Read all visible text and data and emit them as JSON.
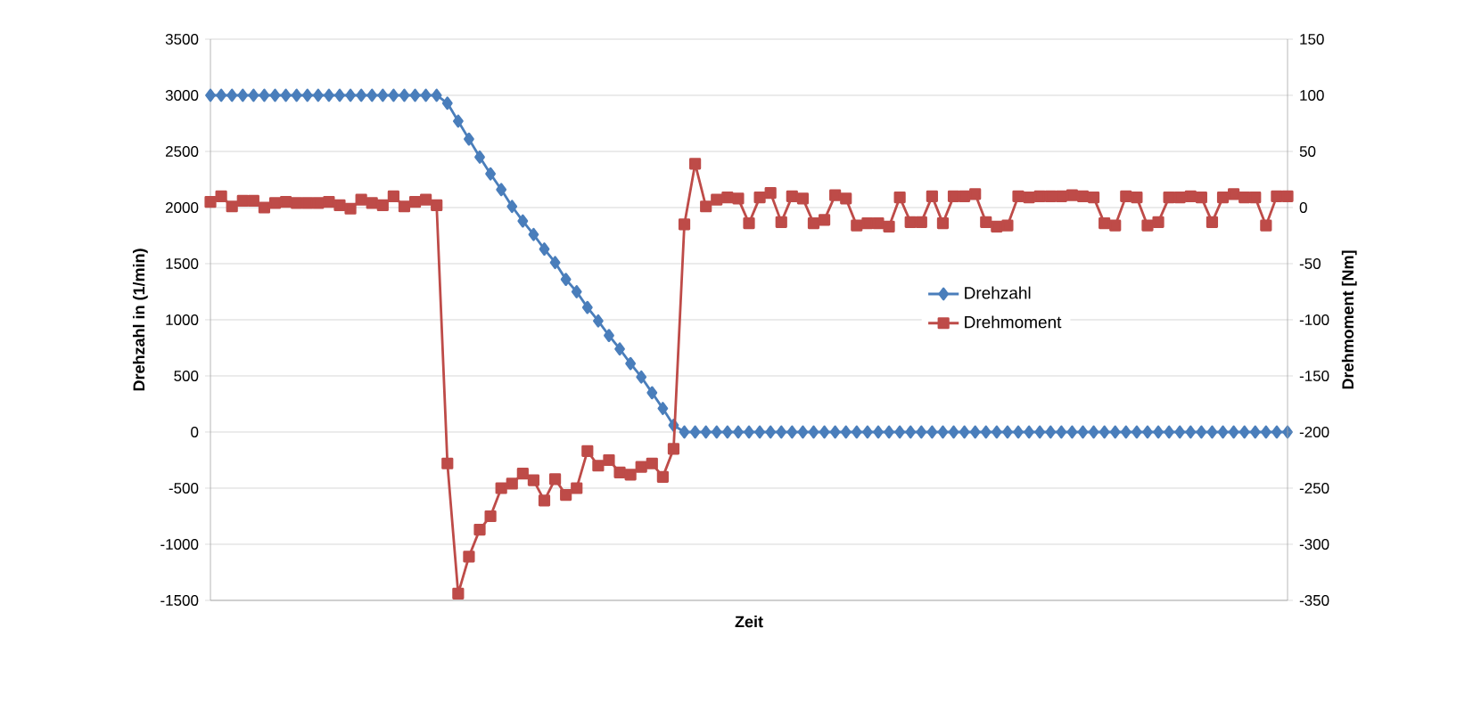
{
  "chart_data": {
    "type": "line",
    "xlabel": "Zeit",
    "ylabel": "Drehzahl in (1/min)",
    "y2label": "Drehmoment [Nm]",
    "categories": [
      null,
      null,
      null,
      null,
      null,
      null,
      null,
      null,
      null,
      null,
      null,
      null,
      null,
      null,
      null,
      null,
      null,
      null,
      null,
      null,
      null,
      null,
      null,
      null,
      null,
      null,
      null,
      null,
      null,
      null,
      null,
      null,
      null,
      null,
      null,
      null,
      null,
      null,
      null,
      null,
      null,
      null,
      null,
      null,
      null,
      null,
      null,
      null,
      null,
      null,
      null,
      null,
      null,
      null,
      null,
      null,
      null,
      null,
      null,
      null,
      null,
      null,
      null,
      null,
      null,
      null,
      null,
      null,
      null,
      null,
      null,
      null,
      null,
      null,
      null,
      null,
      null,
      null,
      null,
      null,
      null,
      null,
      null,
      null,
      null,
      null,
      null,
      null,
      null,
      null,
      null,
      null,
      null,
      null,
      null,
      null,
      null,
      null,
      null,
      null,
      null
    ],
    "series": [
      {
        "name": "Drehzahl",
        "color": "#4a7ebb",
        "marker": "diamond",
        "values": [
          3000,
          3000,
          3000,
          3000,
          3000,
          3000,
          3000,
          3000,
          3000,
          3000,
          3000,
          3000,
          3000,
          3000,
          3000,
          3000,
          3000,
          3000,
          3000,
          3000,
          3000,
          3000,
          2930,
          2770,
          2610,
          2450,
          2300,
          2160,
          2010,
          1880,
          1760,
          1630,
          1510,
          1360,
          1250,
          1110,
          990,
          860,
          740,
          610,
          490,
          350,
          210,
          60,
          0,
          0,
          0,
          0,
          0,
          0,
          0,
          0,
          0,
          0,
          0,
          0,
          0,
          0,
          0,
          0,
          0,
          0,
          0,
          0,
          0,
          0,
          0,
          0,
          0,
          0,
          0,
          0,
          0,
          0,
          0,
          0,
          0,
          0,
          0,
          0,
          0,
          0,
          0,
          0,
          0,
          0,
          0,
          0,
          0,
          0,
          0,
          0,
          0,
          0,
          0,
          0,
          0,
          0,
          0,
          0,
          0
        ]
      },
      {
        "name": "Drehmoment",
        "color": "#be4b48",
        "marker": "square",
        "axis": "y2",
        "values": [
          5,
          10,
          1,
          6,
          6,
          0,
          4,
          5,
          4,
          4,
          4,
          5,
          2,
          -1,
          7,
          4,
          2,
          10,
          1,
          5,
          7,
          2,
          -228,
          -344,
          -311,
          -287,
          -275,
          -250,
          -246,
          -237,
          -243,
          -261,
          -242,
          -256,
          -250,
          -217,
          -230,
          -225,
          -236,
          -238,
          -231,
          -228,
          -240,
          -215,
          -15,
          39,
          1,
          7,
          9,
          8,
          -14,
          9,
          13,
          -13,
          10,
          8,
          -14,
          -11,
          11,
          8,
          -16,
          -14,
          -14,
          -17,
          9,
          -13,
          -13,
          10,
          -14,
          10,
          10,
          12,
          -13,
          -17,
          -16,
          10,
          9,
          10,
          10,
          10,
          11,
          10,
          9,
          -14,
          -16,
          10,
          9,
          -16,
          -13,
          9,
          9,
          10,
          9,
          -13,
          9,
          12,
          9,
          9,
          -16,
          10,
          10
        ]
      }
    ],
    "ylim": [
      -1500,
      3500
    ],
    "yticks": [
      -1500,
      -1000,
      -500,
      0,
      500,
      1000,
      1500,
      2000,
      2500,
      3000,
      3500
    ],
    "y2lim": [
      -350,
      150
    ],
    "y2ticks": [
      -350,
      -300,
      -250,
      -200,
      -150,
      -100,
      -50,
      0,
      50,
      100,
      150
    ],
    "grid": "y",
    "legend": "right",
    "line_style": "solid"
  }
}
